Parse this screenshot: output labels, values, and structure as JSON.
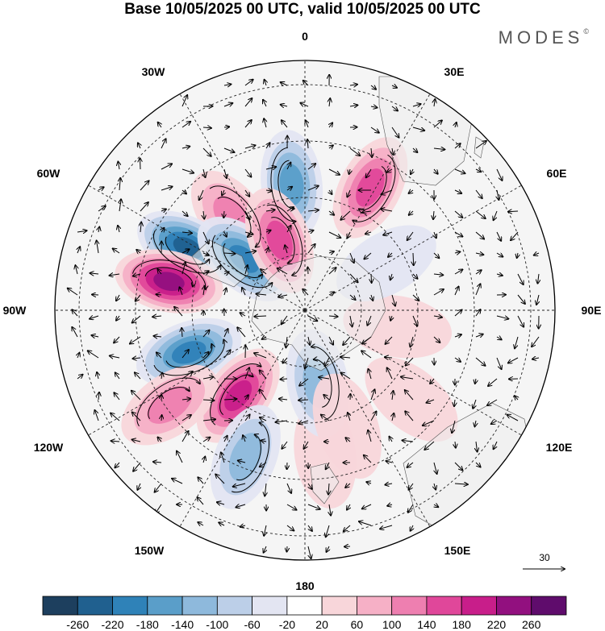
{
  "title": "Base 10/05/2025 00 UTC, valid 10/05/2025 00 UTC",
  "brand": "MODES",
  "brand_mark": "©",
  "projection": "south-polar-stereographic",
  "longitude_labels": [
    {
      "text": "0",
      "lon": 0
    },
    {
      "text": "30E",
      "lon": 30
    },
    {
      "text": "60E",
      "lon": 60
    },
    {
      "text": "90E",
      "lon": 90
    },
    {
      "text": "120E",
      "lon": 120
    },
    {
      "text": "150E",
      "lon": 150
    },
    {
      "text": "180",
      "lon": 180
    },
    {
      "text": "150W",
      "lon": -150
    },
    {
      "text": "120W",
      "lon": -120
    },
    {
      "text": "90W",
      "lon": -90
    },
    {
      "text": "60W",
      "lon": -60
    },
    {
      "text": "30W",
      "lon": -30
    }
  ],
  "reference_vector": {
    "label": "30"
  },
  "colorbar": {
    "labels": [
      "-260",
      "-220",
      "-180",
      "-140",
      "-100",
      "-60",
      "-20",
      "20",
      "60",
      "100",
      "140",
      "180",
      "220",
      "260"
    ],
    "colors": [
      "#1d3f5e",
      "#20608f",
      "#2f82b8",
      "#5a9ec9",
      "#8eb9dc",
      "#bccfe8",
      "#e3e5f2",
      "#ffffff",
      "#f8d6da",
      "#f6b0c6",
      "#ee7fb0",
      "#e0479a",
      "#c81e8a",
      "#92107f",
      "#5f0c6c"
    ]
  },
  "colors": {
    "continent": "#ececec",
    "frame": "#000000"
  },
  "anomaly_features": [
    {
      "lon": -6,
      "lat": -44,
      "value": -150
    },
    {
      "lon": -38,
      "lat": -47,
      "value": 140
    },
    {
      "lon": 28,
      "lat": -40,
      "value": 180
    },
    {
      "lon": -62,
      "lat": -42,
      "value": -260
    },
    {
      "lon": -50,
      "lat": -60,
      "value": -200
    },
    {
      "lon": -20,
      "lat": -62,
      "value": 180
    },
    {
      "lon": -78,
      "lat": -40,
      "value": 260
    },
    {
      "lon": -110,
      "lat": -45,
      "value": -220
    },
    {
      "lon": -142,
      "lat": -50,
      "value": 220
    },
    {
      "lon": -125,
      "lat": -32,
      "value": 140
    },
    {
      "lon": -158,
      "lat": -34,
      "value": -120
    },
    {
      "lon": 172,
      "lat": -38,
      "value": 60
    },
    {
      "lon": 170,
      "lat": -62,
      "value": -140
    },
    {
      "lon": 130,
      "lat": -40,
      "value": 60
    },
    {
      "lon": 100,
      "lat": -55,
      "value": 50
    },
    {
      "lon": 60,
      "lat": -55,
      "value": -50
    },
    {
      "lon": 160,
      "lat": -45,
      "value": 50
    }
  ]
}
